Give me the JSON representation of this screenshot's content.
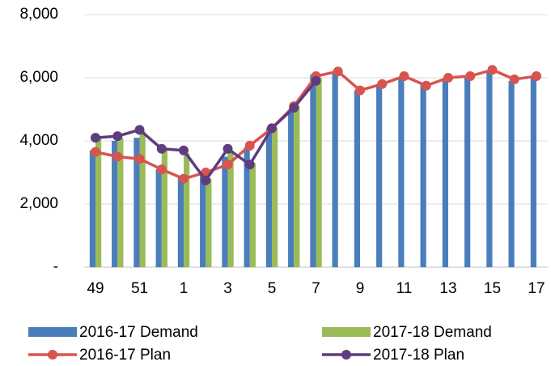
{
  "chart_data": {
    "type": "bar_line",
    "categories": [
      49,
      null,
      51,
      null,
      1,
      null,
      3,
      null,
      5,
      null,
      7,
      null,
      9,
      null,
      11,
      null,
      13,
      null,
      15,
      null,
      17
    ],
    "series": [
      {
        "name": "2016-17 Demand",
        "type": "bar",
        "color": "#4a7ebb",
        "values": [
          3700,
          4000,
          4100,
          3100,
          2900,
          2900,
          3500,
          3800,
          4400,
          5000,
          6100,
          6200,
          5600,
          5800,
          6000,
          5800,
          5900,
          6000,
          6200,
          5900,
          6000
        ]
      },
      {
        "name": "2017-18 Demand",
        "type": "bar",
        "color": "#9bbb59",
        "values": [
          4100,
          4100,
          4300,
          3700,
          3600,
          2800,
          3700,
          3300,
          4400,
          5100,
          6000,
          null,
          null,
          null,
          null,
          null,
          null,
          null,
          null,
          null,
          null
        ]
      },
      {
        "name": "2016-17 Plan",
        "type": "line",
        "color": "#d9534f",
        "values": [
          3650,
          3500,
          3430,
          3100,
          2800,
          3000,
          3250,
          3850,
          4400,
          5100,
          6050,
          6200,
          5600,
          5800,
          6050,
          5750,
          6000,
          6050,
          6250,
          5950,
          6050
        ]
      },
      {
        "name": "2017-18 Plan",
        "type": "line",
        "color": "#5e3c7e",
        "values": [
          4100,
          4150,
          4350,
          3750,
          3700,
          2750,
          3750,
          3250,
          4400,
          5050,
          5900,
          null,
          null,
          null,
          null,
          null,
          null,
          null,
          null,
          null,
          null
        ]
      }
    ],
    "ylim": [
      0,
      8000
    ],
    "yticks": [
      {
        "value": 0,
        "label": "-"
      },
      {
        "value": 2000,
        "label": "2,000"
      },
      {
        "value": 4000,
        "label": "4,000"
      },
      {
        "value": 6000,
        "label": "6,000"
      },
      {
        "value": 8000,
        "label": "8,000"
      }
    ],
    "grid": true
  }
}
